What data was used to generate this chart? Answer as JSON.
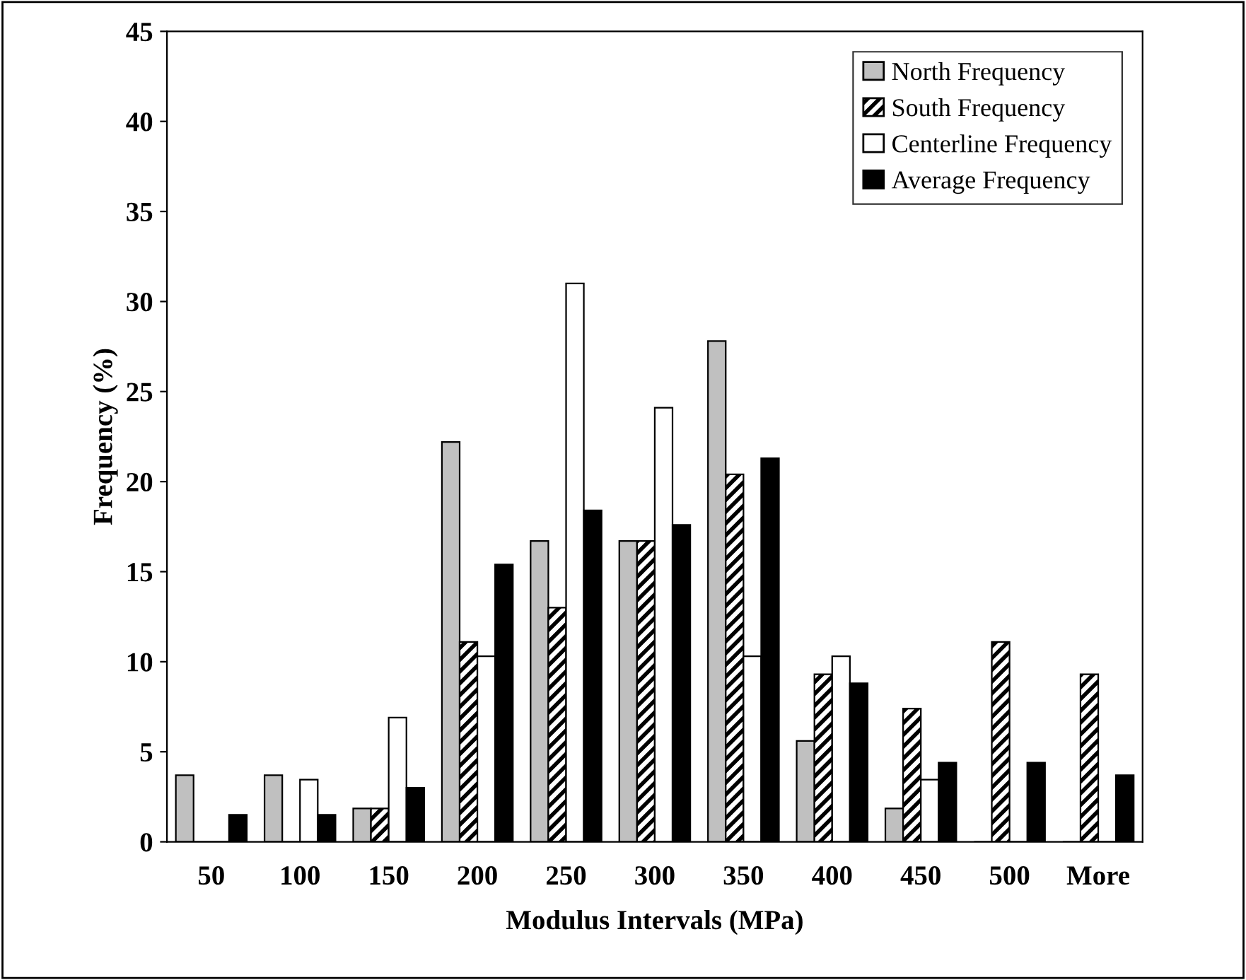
{
  "chart_data": {
    "type": "bar",
    "xlabel": "Modulus Intervals (MPa)",
    "ylabel": "Frequency (%)",
    "categories": [
      "50",
      "100",
      "150",
      "200",
      "250",
      "300",
      "350",
      "400",
      "450",
      "500",
      "More"
    ],
    "series": [
      {
        "name": "North Frequency",
        "color": "#c0c0c0",
        "values": [
          3.7,
          3.7,
          1.85,
          22.2,
          16.7,
          16.7,
          27.8,
          5.6,
          1.85,
          0,
          0
        ]
      },
      {
        "name": "South Frequency",
        "color": "#000000",
        "values": [
          0,
          0,
          1.85,
          11.1,
          13.0,
          16.7,
          20.4,
          9.3,
          7.4,
          11.1,
          9.3
        ]
      },
      {
        "name": "Centerline Frequency",
        "color": "#ffffff",
        "values": [
          0,
          3.45,
          6.9,
          10.3,
          31.0,
          24.1,
          10.3,
          10.3,
          3.45,
          0,
          0
        ]
      },
      {
        "name": "Average Frequency",
        "color": "#000000",
        "values": [
          1.5,
          1.5,
          3.0,
          15.4,
          18.4,
          17.6,
          21.3,
          8.8,
          4.4,
          4.4,
          3.7
        ]
      }
    ],
    "ylim": [
      0,
      45
    ],
    "yticks": [
      0,
      5,
      10,
      15,
      20,
      25,
      30,
      35,
      40,
      45
    ],
    "grid": false,
    "legend": "top right"
  }
}
